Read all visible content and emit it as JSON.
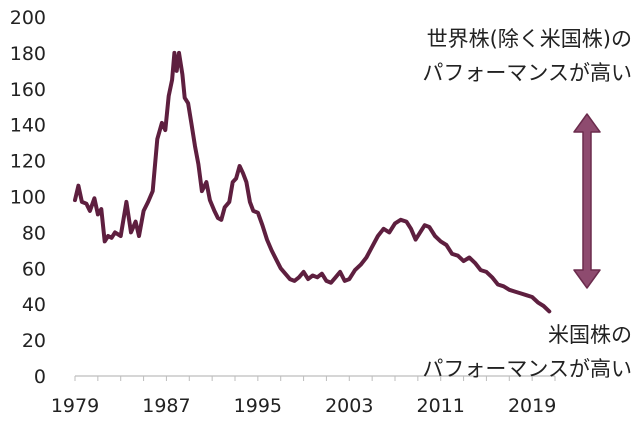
{
  "chart_data": {
    "type": "line",
    "title": "",
    "xlabel": "",
    "ylabel": "",
    "xlim": [
      1979,
      2021
    ],
    "ylim": [
      0,
      200
    ],
    "yticks": [
      0,
      20,
      40,
      60,
      80,
      100,
      120,
      140,
      160,
      180,
      200
    ],
    "xticks": [
      1979,
      1987,
      1995,
      2003,
      2011,
      2019
    ],
    "grid": false,
    "legend": "none",
    "color": "#5e1f3f",
    "series": [
      {
        "x": [
          1979.0,
          1979.3,
          1979.6,
          1980.0,
          1980.3,
          1980.7,
          1981.0,
          1981.3,
          1981.6,
          1981.9,
          1982.2,
          1982.5,
          1983.0,
          1983.5,
          1983.9,
          1984.3,
          1984.6,
          1985.0,
          1985.4,
          1985.8,
          1986.2,
          1986.6,
          1986.9,
          1987.2,
          1987.5,
          1987.7,
          1987.9,
          1988.1,
          1988.4,
          1988.6,
          1988.9,
          1989.2,
          1989.5,
          1989.8,
          1990.1,
          1990.5,
          1990.8,
          1991.2,
          1991.5,
          1991.8,
          1992.1,
          1992.5,
          1992.8,
          1993.1,
          1993.4,
          1993.7,
          1994.0,
          1994.3,
          1994.6,
          1995.0,
          1995.4,
          1995.8,
          1996.2,
          1996.6,
          1997.0,
          1997.4,
          1997.8,
          1998.2,
          1998.6,
          1999.0,
          1999.4,
          1999.8,
          2000.2,
          2000.6,
          2001.0,
          2001.4,
          2001.8,
          2002.2,
          2002.6,
          2003.0,
          2003.5,
          2004.0,
          2004.5,
          2005.0,
          2005.5,
          2006.0,
          2006.5,
          2007.0,
          2007.5,
          2008.0,
          2008.4,
          2008.8,
          2009.2,
          2009.6,
          2010.0,
          2010.5,
          2011.0,
          2011.5,
          2012.0,
          2012.5,
          2013.0,
          2013.5,
          2014.0,
          2014.5,
          2015.0,
          2015.5,
          2016.0,
          2016.5,
          2017.0,
          2017.5,
          2018.0,
          2018.5,
          2019.0,
          2019.5,
          2020.0,
          2020.5
        ],
        "y": [
          98,
          106,
          97,
          96,
          92,
          99,
          90,
          93,
          75,
          78,
          77,
          80,
          78,
          97,
          80,
          86,
          78,
          92,
          97,
          103,
          132,
          141,
          137,
          156,
          165,
          180,
          170,
          180,
          168,
          155,
          152,
          140,
          128,
          118,
          103,
          108,
          98,
          92,
          88,
          87,
          94,
          97,
          108,
          110,
          117,
          113,
          108,
          97,
          92,
          91,
          84,
          76,
          70,
          65,
          60,
          57,
          54,
          53,
          55,
          58,
          54,
          56,
          55,
          57,
          53,
          52,
          55,
          58,
          53,
          54,
          59,
          62,
          66,
          72,
          78,
          82,
          80,
          85,
          87,
          86,
          82,
          76,
          80,
          84,
          83,
          78,
          75,
          73,
          68,
          67,
          64,
          66,
          63,
          59,
          58,
          55,
          51,
          50,
          48,
          47,
          46,
          45,
          44,
          41,
          39,
          36
        ]
      }
    ],
    "annotations": {
      "top_line1": "世界株(除く米国株)の",
      "top_line2": "パフォーマンスが高い",
      "bottom_line1": "米国株の",
      "bottom_line2": "パフォーマンスが高い",
      "arrow_color": "#8e4b6f"
    }
  }
}
